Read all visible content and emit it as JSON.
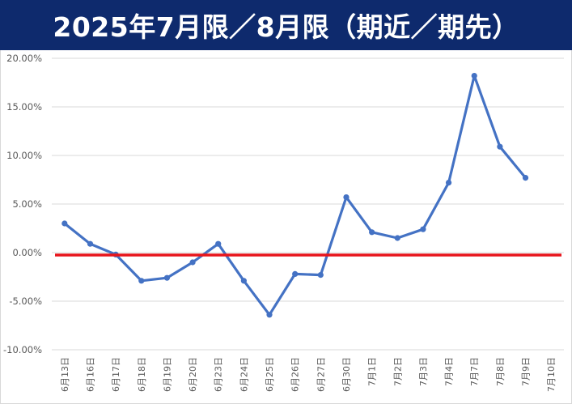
{
  "header": {
    "title": "2025年7月限／8月限（期近／期先）"
  },
  "colors": {
    "title_bg": "#0e2a6d",
    "series": "#4472c4",
    "zero_line": "#e8141b",
    "grid": "#d9d9d9"
  },
  "chart_data": {
    "type": "line",
    "title": "2025年7月限／8月限（期近／期先）",
    "xlabel": "",
    "ylabel": "",
    "ylim": [
      -0.1,
      0.2
    ],
    "yticks": [
      {
        "value": 0.2,
        "label": "20.00%"
      },
      {
        "value": 0.15,
        "label": "15.00%"
      },
      {
        "value": 0.1,
        "label": "10.00%"
      },
      {
        "value": 0.05,
        "label": "5.00%"
      },
      {
        "value": 0.0,
        "label": "0.00%"
      },
      {
        "value": -0.05,
        "label": "-5.00%"
      },
      {
        "value": -0.1,
        "label": "-10.00%"
      }
    ],
    "grid": true,
    "legend": "none",
    "categories": [
      "6月13日",
      "6月16日",
      "6月17日",
      "6月18日",
      "6月19日",
      "6月20日",
      "6月23日",
      "6月24日",
      "6月25日",
      "6月26日",
      "6月27日",
      "6月30日",
      "7月1日",
      "7月2日",
      "7月3日",
      "7月4日",
      "7月7日",
      "7月8日",
      "7月9日",
      "7月10日"
    ],
    "series": [
      {
        "values": [
          0.03,
          0.009,
          -0.002,
          -0.029,
          -0.026,
          -0.01,
          0.009,
          -0.029,
          -0.064,
          -0.022,
          -0.023,
          0.057,
          0.021,
          0.015,
          0.024,
          0.072,
          0.182,
          0.109,
          0.077,
          null
        ]
      }
    ],
    "reference_line": {
      "value": 0.0
    }
  }
}
